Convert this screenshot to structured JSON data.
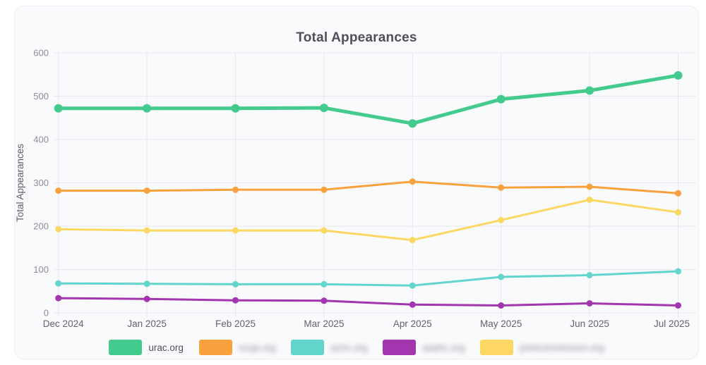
{
  "chart_data": {
    "type": "line",
    "title": "Total Appearances",
    "xlabel": "",
    "ylabel": "Total Appearances",
    "categories": [
      "Dec 2024",
      "Jan 2025",
      "Feb 2025",
      "Mar 2025",
      "Apr 2025",
      "May 2025",
      "Jun 2025",
      "Jul 2025"
    ],
    "ylim": [
      0,
      600
    ],
    "ytick_step": 100,
    "grid": true,
    "legend_position": "bottom",
    "series": [
      {
        "name": "urac.org",
        "color": "#43cb8d",
        "values": [
          472,
          472,
          472,
          473,
          437,
          493,
          513,
          548
        ],
        "line_width": 5,
        "point_radius": 6,
        "redacted": false
      },
      {
        "name": "ncqa.org",
        "color": "#f9a13c",
        "values": [
          282,
          282,
          284,
          284,
          303,
          289,
          291,
          276
        ],
        "line_width": 3,
        "point_radius": 4.5,
        "redacted": true
      },
      {
        "name": "achc.org",
        "color": "#62d6cc",
        "values": [
          68,
          67,
          66,
          66,
          63,
          83,
          87,
          96
        ],
        "line_width": 3,
        "point_radius": 4.5,
        "redacted": true
      },
      {
        "name": "aaahc.org",
        "color": "#a335ae",
        "values": [
          34,
          32,
          29,
          28,
          19,
          17,
          22,
          17
        ],
        "line_width": 3,
        "point_radius": 4.5,
        "redacted": true
      },
      {
        "name": "jointcommission.org",
        "color": "#fcd863",
        "values": [
          193,
          190,
          190,
          190,
          168,
          214,
          261,
          232
        ],
        "line_width": 3,
        "point_radius": 4.5,
        "redacted": true
      }
    ],
    "colors": {
      "grid": "#e6e8ee",
      "y_tick_text": "#8d8d95",
      "x_tick_text": "#63636c",
      "axis_title_text": "#5e5e67"
    }
  }
}
